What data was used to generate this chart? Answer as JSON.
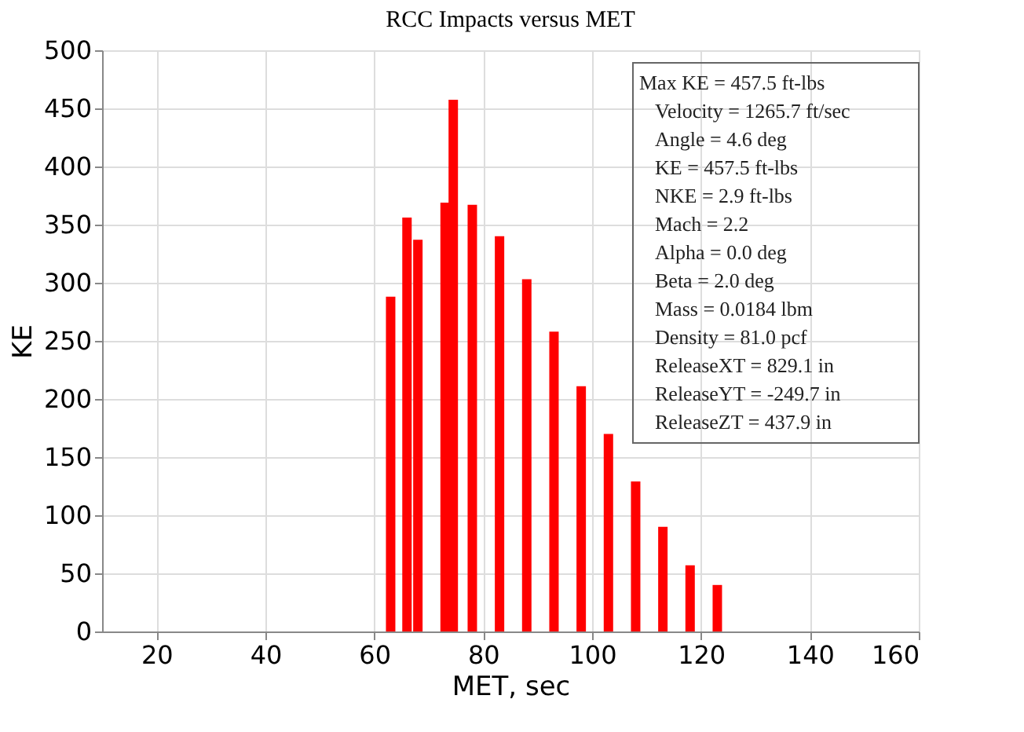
{
  "chart_data": {
    "type": "bar",
    "title": "RCC Impacts versus MET",
    "xlabel": "MET, sec",
    "ylabel": "KE",
    "x": [
      63,
      66,
      68,
      73,
      74.5,
      78,
      83,
      88,
      93,
      98,
      103,
      108,
      113,
      118,
      123
    ],
    "values": [
      288,
      356,
      337,
      369,
      457.5,
      367,
      340,
      303,
      258,
      211,
      170,
      129,
      90,
      57,
      40
    ],
    "color": "#ff0000",
    "xlim": [
      10,
      160
    ],
    "xticks": [
      20,
      40,
      60,
      80,
      100,
      120,
      140,
      160
    ],
    "ylim": [
      0,
      500
    ],
    "yticks": [
      0,
      50,
      100,
      150,
      200,
      250,
      300,
      350,
      400,
      450,
      500
    ],
    "grid": true,
    "annotations": [
      "Max KE = 457.5 ft-lbs",
      "Velocity = 1265.7 ft/sec",
      "Angle     = 4.6 deg",
      "KE         = 457.5 ft-lbs",
      "NKE      = 2.9 ft-lbs",
      "Mach     = 2.2",
      "Alpha    = 0.0 deg",
      "Beta     = 2.0 deg",
      "Mass     = 0.0184 lbm",
      "Density  = 81.0 pcf",
      "ReleaseXT = 829.1 in",
      "ReleaseYT = -249.7 in",
      "ReleaseZT = 437.9 in"
    ]
  }
}
